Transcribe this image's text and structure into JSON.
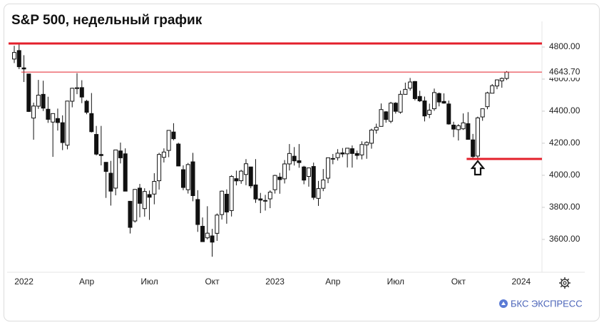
{
  "chart_data": {
    "type": "candlestick",
    "title": "S&P 500, недельный график",
    "brand": "БКС ЭКСПРЕСС",
    "categories": [
      null,
      null,
      "2022",
      null,
      null,
      null,
      null,
      null,
      null,
      null,
      null,
      null,
      null,
      null,
      null,
      "Апр",
      null,
      null,
      null,
      null,
      null,
      null,
      null,
      null,
      null,
      null,
      null,
      null,
      "Июл",
      null,
      null,
      null,
      null,
      null,
      null,
      null,
      null,
      null,
      null,
      null,
      null,
      "Окт",
      null,
      null,
      null,
      null,
      null,
      null,
      null,
      null,
      null,
      null,
      null,
      null,
      "2023",
      null,
      null,
      null,
      null,
      null,
      null,
      null,
      null,
      null,
      null,
      null,
      "Апр",
      null,
      null,
      null,
      null,
      null,
      null,
      null,
      null,
      null,
      null,
      null,
      null,
      "Июл",
      null,
      null,
      null,
      null,
      null,
      null,
      null,
      null,
      null,
      null,
      null,
      null,
      "Окт",
      null,
      null,
      null,
      null,
      null,
      null,
      null,
      null,
      null,
      null,
      null,
      null,
      "2024"
    ],
    "open": [
      4725,
      4778,
      4670,
      4632,
      4357,
      4431,
      4505,
      4412,
      4332,
      4354,
      4328,
      4188,
      4462,
      4541,
      4547,
      4462,
      4385,
      4255,
      4130,
      4081,
      4013,
      3920,
      4152,
      4134,
      3838,
      3715,
      3920,
      3792,
      3880,
      3883,
      3966,
      4112,
      4155,
      4270,
      4195,
      4035,
      3910,
      4084,
      3849,
      3682,
      3610,
      3622,
      3638,
      3755,
      3882,
      3780,
      3979,
      3966,
      4005,
      4052,
      3940,
      3853,
      3843,
      3853,
      3910,
      3989,
      3978,
      4071,
      4119,
      4091,
      4052,
      3993,
      4055,
      3856,
      3919,
      3982,
      4102,
      4110,
      4140,
      4134,
      4166,
      4136,
      4127,
      4190,
      4200,
      4282,
      4305,
      4396,
      4337,
      4450,
      4394,
      4505,
      4543,
      4585,
      4492,
      4464,
      4380,
      4415,
      4510,
      4461,
      4445,
      4313,
      4285,
      4290,
      4322,
      4221,
      4120,
      4364,
      4428,
      4512,
      4557,
      4589,
      4604,
      null,
      null,
      null
    ],
    "high": [
      4808,
      4818,
      4749,
      4632,
      4453,
      4595,
      4590,
      4490,
      4386,
      4416,
      4374,
      4465,
      4546,
      4637,
      4593,
      4471,
      4513,
      4308,
      4308,
      4082,
      4090,
      4159,
      4204,
      4168,
      3838,
      3914,
      3946,
      3919,
      3905,
      4013,
      4140,
      4168,
      4280,
      4325,
      4203,
      4062,
      4077,
      4140,
      3907,
      3737,
      3807,
      3666,
      3762,
      3905,
      3912,
      4001,
      4029,
      4034,
      4101,
      4052,
      4101,
      3890,
      3878,
      3906,
      4003,
      4015,
      4095,
      4195,
      4176,
      4195,
      4059,
      4048,
      4079,
      3965,
      4039,
      4110,
      4133,
      4163,
      4170,
      4170,
      4186,
      4154,
      4212,
      4212,
      4291,
      4322,
      4448,
      4400,
      4458,
      4456,
      4528,
      4578,
      4607,
      4588,
      4527,
      4491,
      4447,
      4541,
      4516,
      4511,
      4466,
      4334,
      4319,
      4386,
      4394,
      4258,
      4366,
      4415,
      4521,
      4569,
      4598,
      4610,
      4650,
      null,
      null,
      null
    ],
    "low": [
      4700,
      4662,
      4582,
      4395,
      4222,
      4414,
      4401,
      4327,
      4115,
      4279,
      4157,
      4162,
      4424,
      4506,
      4450,
      4381,
      4267,
      4124,
      4062,
      3859,
      3811,
      3875,
      4074,
      3901,
      3637,
      3705,
      3738,
      3742,
      3722,
      3819,
      3911,
      4080,
      4113,
      4218,
      4057,
      3907,
      3886,
      3838,
      3647,
      3584,
      3600,
      3492,
      3591,
      3724,
      3698,
      3743,
      3937,
      3947,
      3938,
      3919,
      3828,
      3764,
      3780,
      3795,
      3886,
      3885,
      3949,
      4030,
      4061,
      4047,
      3944,
      3929,
      3847,
      3809,
      3901,
      3951,
      4069,
      4092,
      4113,
      4049,
      4048,
      4099,
      4099,
      4103,
      4166,
      4260,
      4305,
      4328,
      4325,
      4385,
      4384,
      4503,
      4528,
      4467,
      4457,
      4336,
      4356,
      4402,
      4430,
      4447,
      4316,
      4238,
      4217,
      4283,
      4223,
      4104,
      4103,
      4340,
      4412,
      4511,
      4537,
      4546,
      4594,
      null,
      null,
      null
    ],
    "close": [
      4766,
      4677,
      4663,
      4398,
      4432,
      4500,
      4419,
      4349,
      4385,
      4329,
      4204,
      4463,
      4543,
      4546,
      4488,
      4393,
      4272,
      4132,
      4123,
      4024,
      3901,
      4158,
      4109,
      3901,
      3675,
      3912,
      3825,
      3899,
      3863,
      3962,
      4130,
      4145,
      4280,
      4228,
      4058,
      3924,
      4067,
      3873,
      3693,
      3586,
      3639,
      3583,
      3752,
      3901,
      3771,
      3993,
      3965,
      4026,
      4072,
      3934,
      3852,
      3845,
      3840,
      3895,
      3999,
      3973,
      4071,
      4136,
      4090,
      4079,
      3970,
      4046,
      3862,
      3917,
      3971,
      4109,
      4105,
      4138,
      4133,
      4169,
      4136,
      4124,
      4192,
      4205,
      4282,
      4299,
      4410,
      4348,
      4450,
      4399,
      4505,
      4536,
      4582,
      4478,
      4464,
      4370,
      4406,
      4516,
      4457,
      4450,
      4320,
      4288,
      4309,
      4327,
      4224,
      4117,
      4358,
      4415,
      4514,
      4559,
      4595,
      4604,
      4643.7,
      null,
      null,
      null
    ],
    "color_up": "#ffffff",
    "color_down": "#111111",
    "ylim": [
      3404,
      4960
    ],
    "yticks": [
      {
        "value": 3600,
        "label": "3600.00"
      },
      {
        "value": 3800,
        "label": "3800.00"
      },
      {
        "value": 4000,
        "label": "4000.00"
      },
      {
        "value": 4200,
        "label": "4200.00"
      },
      {
        "value": 4400,
        "label": "4400.00"
      },
      {
        "value": 4600,
        "label": "4600.00"
      },
      {
        "value": 4800,
        "label": "4800.00"
      }
    ],
    "last_price": {
      "value": 4643.7,
      "label": "4643.70"
    },
    "levels": [
      {
        "value": 4822,
        "color": "#e3202b"
      },
      {
        "value": 4102,
        "color": "#e3202b"
      }
    ],
    "level_color_thin": "#e3202b"
  }
}
